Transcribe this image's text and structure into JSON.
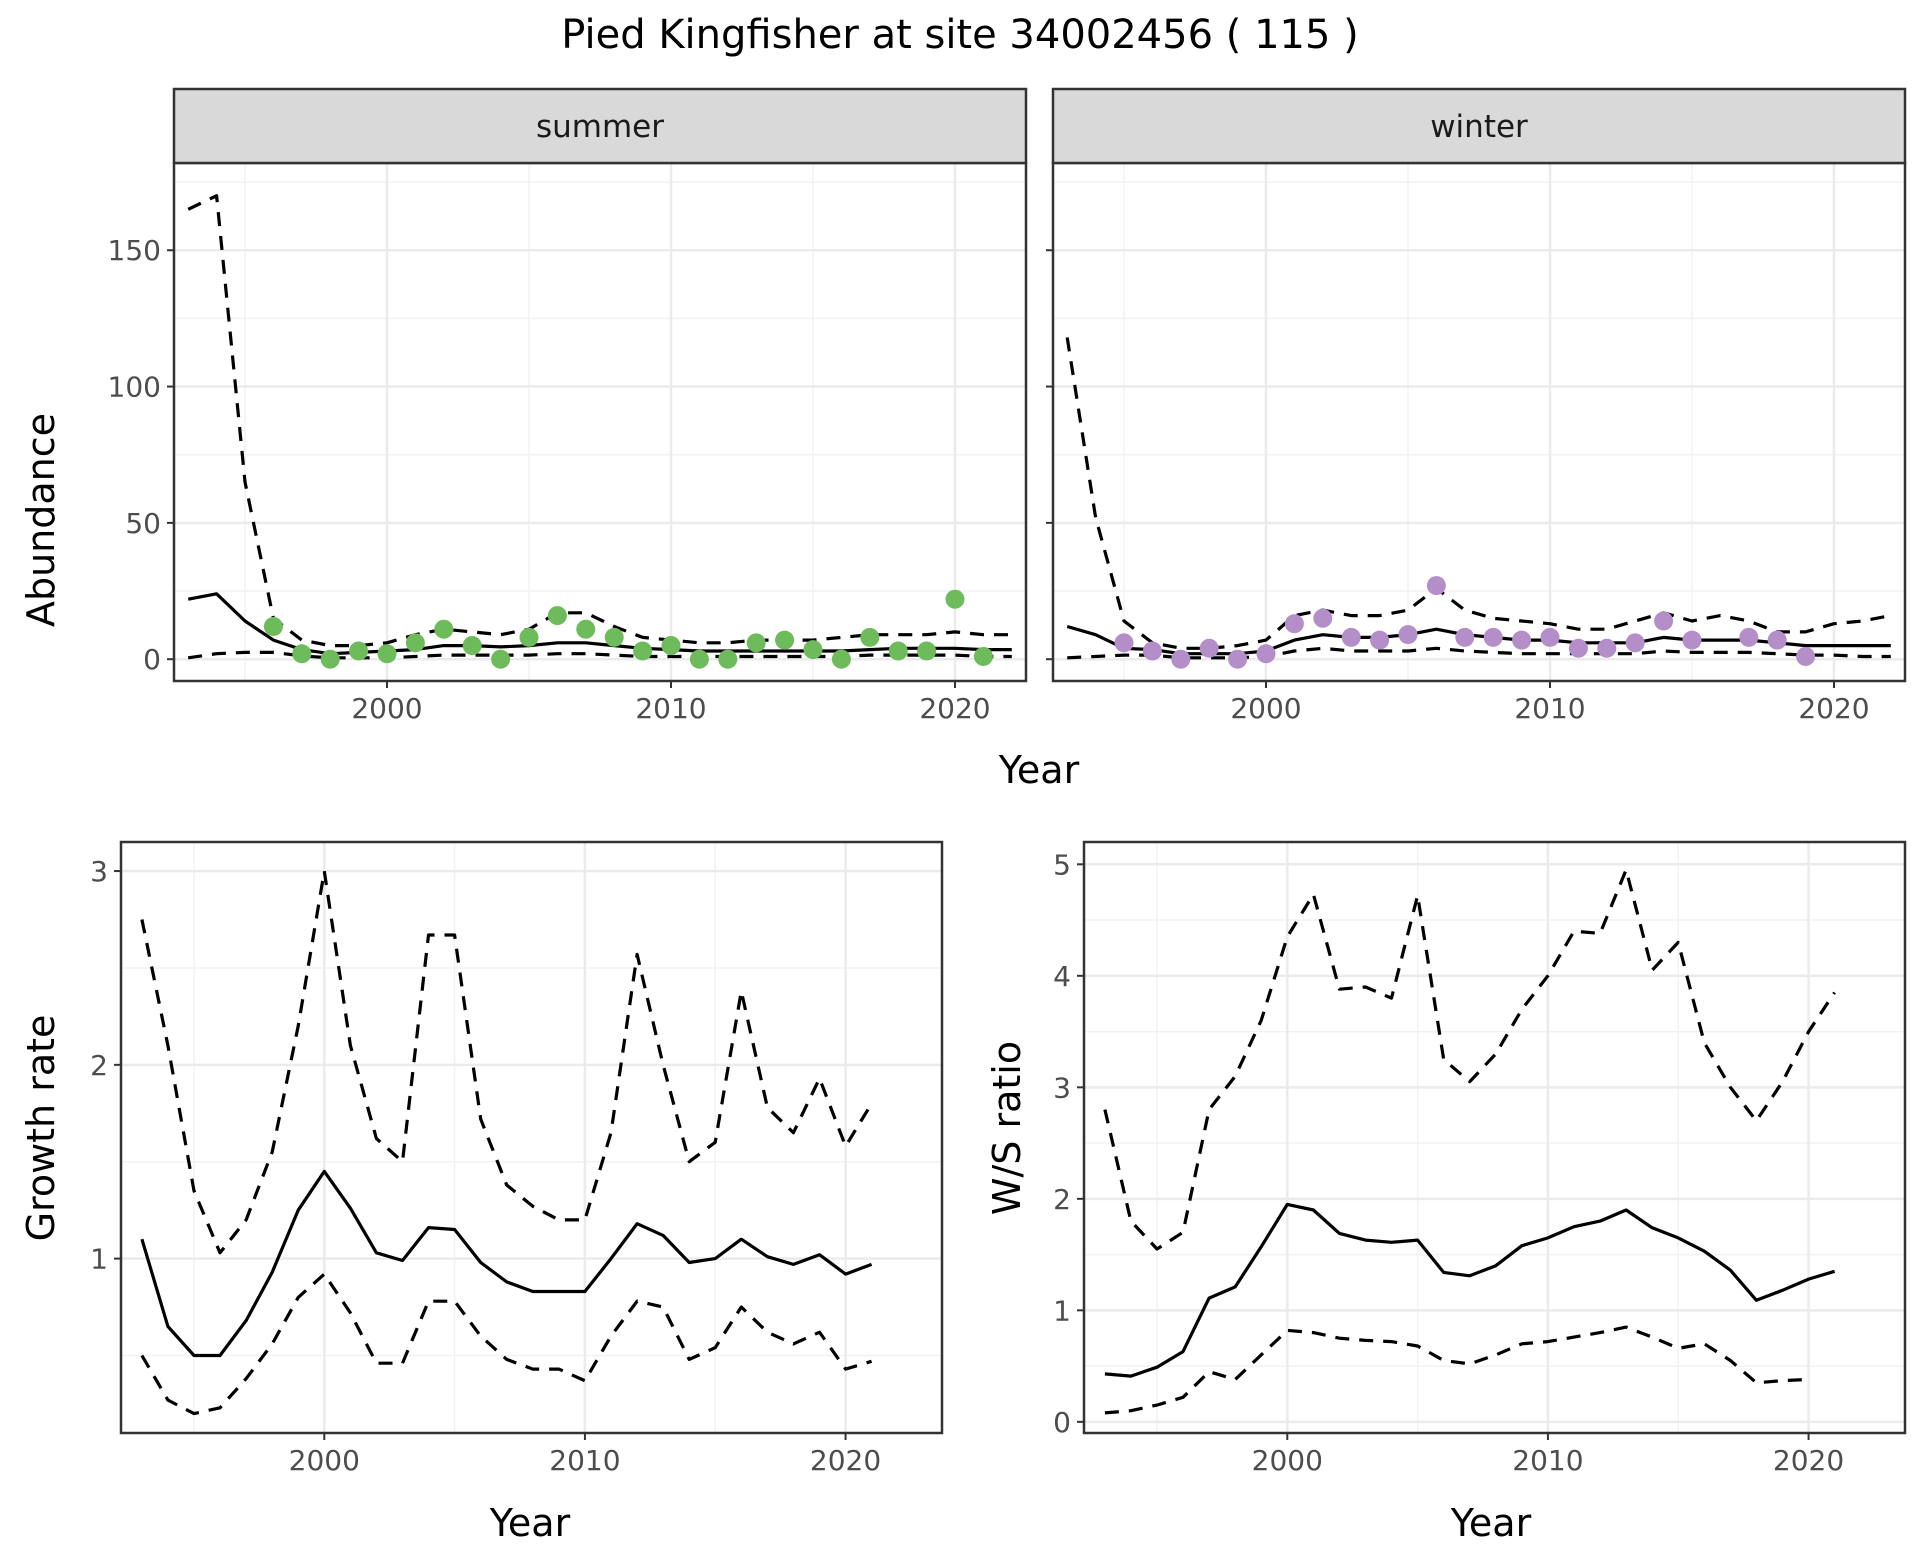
{
  "figure": {
    "title": "Pied Kingfisher at site 34002456 ( 115 )"
  },
  "chart_data": [
    {
      "id": "abundance",
      "type": "scatter",
      "ylabel": "Abundance",
      "xlabel": "Year",
      "xlim": [
        1992.5,
        2022.5
      ],
      "ylim": [
        -8,
        182
      ],
      "x_ticks": [
        2000,
        2010,
        2020
      ],
      "y_ticks": [
        0,
        50,
        100,
        150
      ],
      "grid": true,
      "facets": [
        {
          "label": "summer",
          "point_color": "#6dbb5a",
          "model_years": [
            1993,
            1994,
            1995,
            1996,
            1997,
            1998,
            1999,
            2000,
            2001,
            2002,
            2003,
            2004,
            2005,
            2006,
            2007,
            2008,
            2009,
            2010,
            2011,
            2012,
            2013,
            2014,
            2015,
            2016,
            2017,
            2018,
            2019,
            2020,
            2021,
            2022
          ],
          "fit": [
            22,
            24,
            14,
            7,
            3.5,
            2,
            2.5,
            3,
            3.5,
            5,
            5,
            4.5,
            5,
            6,
            6,
            5,
            4,
            3.5,
            3,
            3,
            3,
            3,
            3,
            3,
            3.5,
            4,
            4,
            4,
            3.5,
            3.5
          ],
          "lower": [
            0.5,
            2,
            2.5,
            2.5,
            1.2,
            0.5,
            0.5,
            0.5,
            1,
            1.5,
            1.5,
            1.5,
            1.5,
            2,
            2,
            1.5,
            1,
            1,
            1,
            1,
            1,
            1,
            1,
            1,
            1.5,
            1.5,
            1.5,
            1.5,
            1,
            1
          ],
          "upper": [
            165,
            170,
            65,
            15,
            7,
            5,
            5,
            6,
            9,
            11,
            10,
            9,
            11,
            17,
            17,
            12,
            8,
            7,
            6,
            6,
            7,
            7,
            7,
            8,
            9,
            9,
            9,
            10,
            9,
            9
          ],
          "obs_years": [
            1996,
            1997,
            1998,
            1999,
            2000,
            2001,
            2002,
            2003,
            2004,
            2005,
            2006,
            2007,
            2008,
            2009,
            2010,
            2011,
            2012,
            2013,
            2014,
            2015,
            2016,
            2017,
            2018,
            2019,
            2020,
            2021
          ],
          "obs_values": [
            12,
            2,
            0,
            3,
            2,
            6,
            11,
            5,
            0,
            8,
            16,
            11,
            8,
            3,
            5,
            0,
            0,
            6,
            7,
            3.5,
            0,
            8,
            3,
            3,
            22,
            1
          ]
        },
        {
          "label": "winter",
          "point_color": "#b48ec9",
          "model_years": [
            1993,
            1994,
            1995,
            1996,
            1997,
            1998,
            1999,
            2000,
            2001,
            2002,
            2003,
            2004,
            2005,
            2006,
            2007,
            2008,
            2009,
            2010,
            2011,
            2012,
            2013,
            2014,
            2015,
            2016,
            2017,
            2018,
            2019,
            2020,
            2021,
            2022
          ],
          "fit": [
            12,
            9,
            4,
            3.5,
            2,
            2,
            2,
            3,
            7,
            9,
            8,
            8,
            9,
            11,
            9,
            8,
            7,
            7,
            6,
            6,
            6,
            8,
            7,
            7,
            7,
            6,
            5,
            5,
            5,
            5
          ],
          "lower": [
            0.5,
            1,
            1.5,
            1.5,
            0.5,
            0.5,
            0.5,
            1,
            3,
            4,
            3,
            3,
            3,
            4,
            3,
            2.5,
            2,
            2,
            2,
            2,
            2,
            3,
            2.5,
            2.5,
            2.5,
            2,
            1.5,
            1.5,
            1,
            1
          ],
          "upper": [
            118,
            52,
            14,
            6,
            4,
            4,
            5,
            7,
            16,
            18,
            16,
            16,
            18,
            26,
            18,
            15,
            14,
            13,
            11,
            11,
            14,
            17,
            14,
            16,
            14,
            10,
            10,
            13,
            14,
            16
          ],
          "obs_years": [
            1995,
            1996,
            1997,
            1998,
            1999,
            2000,
            2001,
            2002,
            2003,
            2004,
            2005,
            2006,
            2007,
            2008,
            2009,
            2010,
            2011,
            2012,
            2013,
            2014,
            2015,
            2017,
            2018,
            2019
          ],
          "obs_values": [
            6,
            3,
            0,
            4,
            0,
            2,
            13,
            15,
            8,
            7,
            9,
            27,
            8,
            8,
            7,
            8,
            4,
            4,
            6,
            14,
            7,
            8,
            7,
            1
          ]
        }
      ]
    },
    {
      "id": "growth",
      "type": "line",
      "ylabel": "Growth rate",
      "xlabel": "Year",
      "xlim": [
        1992.2,
        2023.7
      ],
      "ylim": [
        0.1,
        3.15
      ],
      "x_ticks": [
        2000,
        2010,
        2020
      ],
      "y_ticks": [
        1,
        2,
        3
      ],
      "grid": true,
      "x": [
        1993,
        1994,
        1995,
        1996,
        1997,
        1998,
        1999,
        2000,
        2001,
        2002,
        2003,
        2004,
        2005,
        2006,
        2007,
        2008,
        2009,
        2010,
        2011,
        2012,
        2013,
        2014,
        2015,
        2016,
        2017,
        2018,
        2019,
        2020,
        2021
      ],
      "series": [
        {
          "role": "fit",
          "dash": "solid",
          "values": [
            1.1,
            0.65,
            0.5,
            0.5,
            0.68,
            0.93,
            1.25,
            1.45,
            1.26,
            1.03,
            0.99,
            1.16,
            1.15,
            0.98,
            0.88,
            0.83,
            0.83,
            0.83,
            1.0,
            1.18,
            1.12,
            0.98,
            1.0,
            1.1,
            1.01,
            0.97,
            1.02,
            0.92,
            0.97
          ]
        },
        {
          "role": "upper",
          "dash": "dashed",
          "values": [
            2.75,
            2.1,
            1.35,
            1.03,
            1.2,
            1.55,
            2.2,
            3.0,
            2.1,
            1.62,
            1.5,
            2.67,
            2.67,
            1.72,
            1.38,
            1.27,
            1.2,
            1.2,
            1.65,
            2.57,
            2.0,
            1.5,
            1.6,
            2.38,
            1.78,
            1.65,
            1.93,
            1.58,
            1.8
          ]
        },
        {
          "role": "lower",
          "dash": "dashed",
          "values": [
            0.5,
            0.27,
            0.2,
            0.23,
            0.38,
            0.56,
            0.8,
            0.92,
            0.72,
            0.46,
            0.46,
            0.78,
            0.78,
            0.6,
            0.48,
            0.43,
            0.43,
            0.37,
            0.6,
            0.78,
            0.75,
            0.48,
            0.54,
            0.75,
            0.62,
            0.56,
            0.62,
            0.43,
            0.47
          ]
        }
      ]
    },
    {
      "id": "ws_ratio",
      "type": "line",
      "ylabel": "W/S ratio",
      "xlabel": "Year",
      "xlim": [
        1992.2,
        2023.7
      ],
      "ylim": [
        -0.1,
        5.2
      ],
      "x_ticks": [
        2000,
        2010,
        2020
      ],
      "y_ticks": [
        0,
        1,
        2,
        3,
        4,
        5
      ],
      "grid": true,
      "x": [
        1993,
        1994,
        1995,
        1996,
        1997,
        1998,
        1999,
        2000,
        2001,
        2002,
        2003,
        2004,
        2005,
        2006,
        2007,
        2008,
        2009,
        2010,
        2011,
        2012,
        2013,
        2014,
        2015,
        2016,
        2017,
        2018,
        2019,
        2020,
        2021
      ],
      "series": [
        {
          "role": "fit",
          "dash": "solid",
          "values": [
            0.43,
            0.41,
            0.49,
            0.63,
            1.11,
            1.21,
            1.57,
            1.95,
            1.9,
            1.69,
            1.63,
            1.61,
            1.63,
            1.34,
            1.31,
            1.4,
            1.58,
            1.65,
            1.75,
            1.8,
            1.9,
            1.74,
            1.65,
            1.53,
            1.36,
            1.09,
            1.18,
            1.28,
            1.35
          ]
        },
        {
          "role": "upper",
          "dash": "dashed",
          "values": [
            2.8,
            1.8,
            1.55,
            1.7,
            2.8,
            3.1,
            3.6,
            4.35,
            4.73,
            3.88,
            3.9,
            3.8,
            4.72,
            3.25,
            3.05,
            3.3,
            3.7,
            4.0,
            4.4,
            4.38,
            4.95,
            4.05,
            4.3,
            3.4,
            3.0,
            2.7,
            3.05,
            3.5,
            3.85
          ]
        },
        {
          "role": "lower",
          "dash": "dashed",
          "values": [
            0.08,
            0.1,
            0.15,
            0.22,
            0.45,
            0.38,
            0.6,
            0.82,
            0.8,
            0.75,
            0.73,
            0.72,
            0.68,
            0.55,
            0.52,
            0.6,
            0.7,
            0.72,
            0.76,
            0.8,
            0.85,
            0.76,
            0.66,
            0.7,
            0.55,
            0.35,
            0.37,
            0.38,
            null
          ]
        }
      ]
    }
  ]
}
